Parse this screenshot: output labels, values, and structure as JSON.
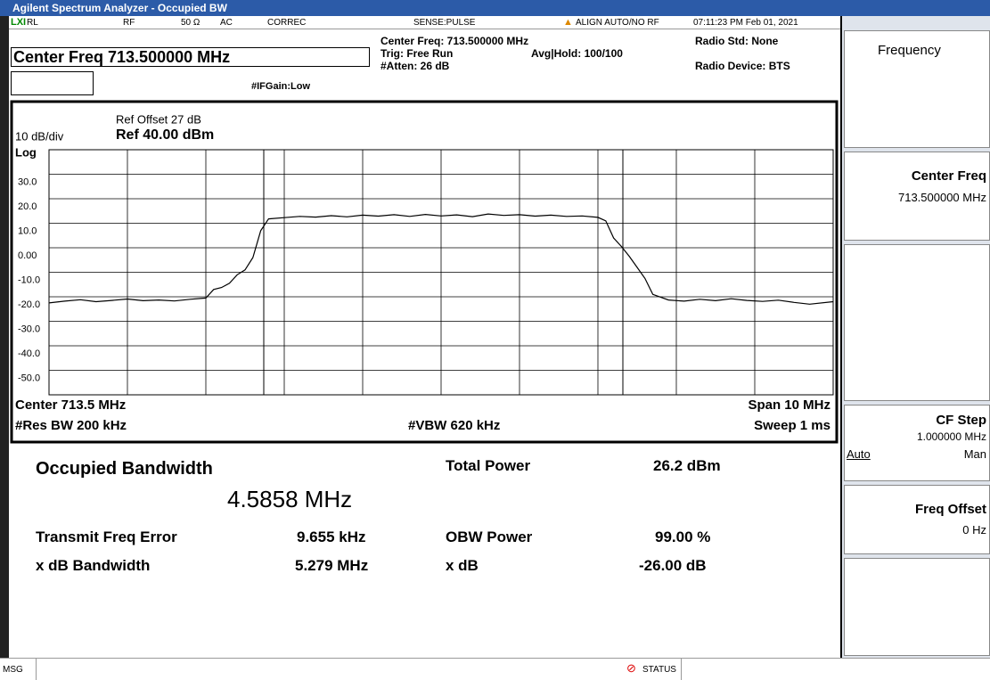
{
  "title_bar": "Agilent Spectrum Analyzer - Occupied BW",
  "status_bar": {
    "rl": "RL",
    "rf": "RF",
    "impedance": "50 Ω",
    "coupling": "AC",
    "correc": "CORREC",
    "sense": "SENSE:PULSE",
    "align": "ALIGN AUTO/NO RF",
    "datetime": "07:11:23 PM Feb 01, 2021"
  },
  "header": {
    "center_freq": "Center Freq 713.500000 MHz",
    "center_freq_info": "Center Freq: 713.500000 MHz",
    "trig": "Trig: Free Run",
    "atten": "#Atten: 26 dB",
    "ifgain": "#IFGain:Low",
    "avg_hold": "Avg|Hold: 100/100",
    "radio_std": "Radio Std: None",
    "radio_device": "Radio Device: BTS"
  },
  "chart_data": {
    "type": "line",
    "ref_offset": "Ref Offset 27 dB",
    "scale": "10 dB/div",
    "ref_level": "Ref 40.00 dBm",
    "scale_type": "Log",
    "x": [
      708.5,
      708.7,
      708.9,
      709.1,
      709.3,
      709.5,
      709.7,
      709.9,
      710.1,
      710.3,
      710.5,
      710.6,
      710.7,
      710.8,
      710.9,
      711.0,
      711.1,
      711.2,
      711.3,
      711.5,
      711.7,
      711.9,
      712.1,
      712.3,
      712.5,
      712.7,
      712.9,
      713.1,
      713.3,
      713.5,
      713.7,
      713.9,
      714.1,
      714.3,
      714.5,
      714.7,
      714.9,
      715.1,
      715.3,
      715.5,
      715.6,
      715.7,
      715.8,
      715.9,
      716.0,
      716.1,
      716.2,
      716.4,
      716.6,
      716.8,
      717.0,
      717.2,
      717.4,
      717.6,
      717.8,
      718.0,
      718.2,
      718.5
    ],
    "values": [
      -22.5,
      -21.8,
      -21.2,
      -22.0,
      -21.5,
      -20.9,
      -21.6,
      -21.3,
      -21.7,
      -21.0,
      -20.5,
      -17.0,
      -16.2,
      -14.5,
      -11.0,
      -9.0,
      -4.0,
      7.0,
      11.8,
      12.3,
      12.8,
      12.5,
      13.1,
      12.6,
      13.3,
      12.9,
      13.5,
      12.8,
      13.6,
      13.0,
      13.4,
      12.7,
      13.8,
      13.2,
      13.5,
      12.9,
      13.3,
      12.8,
      13.0,
      12.4,
      11.0,
      4.0,
      0.5,
      -3.5,
      -8.0,
      -12.5,
      -19.0,
      -21.3,
      -21.8,
      -21.0,
      -21.6,
      -20.8,
      -21.5,
      -21.9,
      -21.4,
      -22.3,
      -23.0,
      -22.0
    ],
    "color": "#000000",
    "xlim": [
      708.5,
      718.5
    ],
    "ylim": [
      -60,
      40
    ],
    "yticks": [
      {
        "value": 30,
        "label": "30.0"
      },
      {
        "value": 20,
        "label": "20.0"
      },
      {
        "value": 10,
        "label": "10.0"
      },
      {
        "value": 0,
        "label": "0.00"
      },
      {
        "value": -10,
        "label": "-10.0"
      },
      {
        "value": -20,
        "label": "-20.0"
      },
      {
        "value": -30,
        "label": "-30.0"
      },
      {
        "value": -40,
        "label": "-40.0"
      },
      {
        "value": -50,
        "label": "-50.0"
      }
    ],
    "grid": true,
    "footer": {
      "center": "Center 713.5 MHz",
      "span": "Span 10 MHz",
      "rbw": "#Res BW 200 kHz",
      "vbw": "#VBW 620 kHz",
      "sweep": "Sweep 1 ms"
    }
  },
  "results": {
    "obw_label": "Occupied Bandwidth",
    "obw_value": "4.5858 MHz",
    "total_power_label": "Total Power",
    "total_power_value": "26.2 dBm",
    "freq_error_label": "Transmit Freq Error",
    "freq_error_value": "9.655 kHz",
    "obw_power_label": "OBW Power",
    "obw_power_value": "99.00 %",
    "xdb_bw_label": "x dB Bandwidth",
    "xdb_bw_value": "5.279 MHz",
    "xdb_label": "x dB",
    "xdb_value": "-26.00 dB"
  },
  "softkeys": {
    "menu": "Frequency",
    "center_freq": "Center Freq",
    "center_freq_value": "713.500000 MHz",
    "cf_step": "CF Step",
    "cf_step_value": "1.000000 MHz",
    "auto": "Auto",
    "man": "Man",
    "freq_offset": "Freq Offset",
    "freq_offset_value": "0 Hz"
  },
  "bottom_bar": {
    "msg": "MSG",
    "status": "STATUS"
  }
}
